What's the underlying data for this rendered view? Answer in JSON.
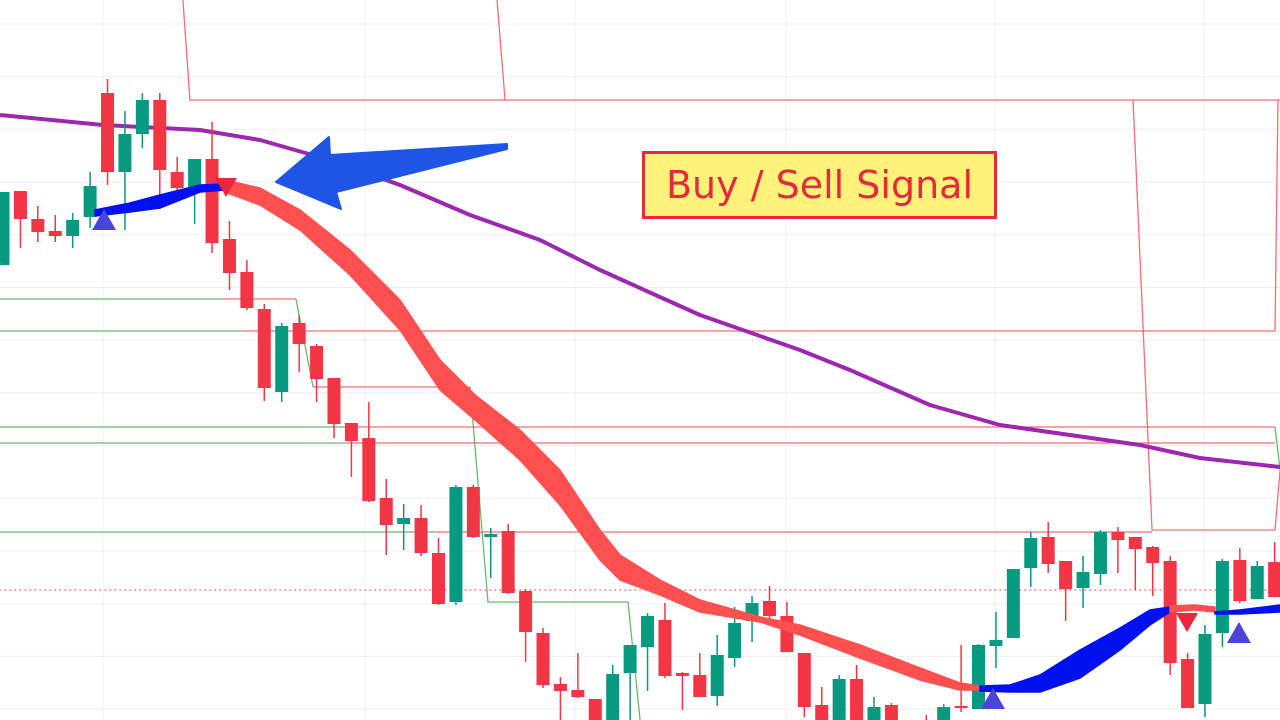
{
  "chart_data": {
    "type": "candlestick",
    "title": "",
    "xlabel": "",
    "ylabel": "",
    "grid": true,
    "colors": {
      "up": "#089981",
      "down": "#f23645",
      "moving_average": "#9c27b0",
      "signal_bull": "#0010ee",
      "signal_bear": "#ff4f4f",
      "buy_marker": "#4c44d8",
      "sell_marker": "#e8283c",
      "arrow": "#1f55e6",
      "support": "#4caf50",
      "resistance": "#f7525f",
      "label_bg": "#fff27a",
      "label_text": "#e8283c"
    },
    "candles": [
      [
        45.5,
        52.8,
        45.5,
        52.8
      ],
      [
        52.9,
        52.9,
        47.2,
        50.1
      ],
      [
        50.1,
        51.4,
        47.8,
        48.8
      ],
      [
        48.9,
        50.5,
        47.8,
        48.4
      ],
      [
        48.4,
        50.7,
        47.2,
        50.0
      ],
      [
        50.3,
        54.8,
        49.2,
        53.4
      ],
      [
        62.7,
        64.1,
        53.5,
        54.8
      ],
      [
        54.8,
        60.9,
        49.0,
        58.6
      ],
      [
        58.6,
        62.7,
        57.2,
        62.0
      ],
      [
        62.0,
        62.7,
        51.1,
        55.0
      ],
      [
        54.8,
        56.3,
        52.3,
        53.2
      ],
      [
        53.3,
        56.1,
        49.6,
        56.1
      ],
      [
        56.1,
        59.8,
        46.7,
        47.7
      ],
      [
        48.1,
        49.9,
        43.0,
        44.7
      ],
      [
        44.8,
        46.0,
        41.0,
        41.2
      ],
      [
        41.1,
        41.6,
        31.9,
        33.2
      ],
      [
        32.8,
        39.7,
        31.8,
        39.4
      ],
      [
        39.7,
        40.5,
        34.8,
        37.6
      ],
      [
        37.4,
        37.6,
        31.8,
        34.1
      ],
      [
        34.2,
        34.2,
        28.2,
        29.6
      ],
      [
        29.7,
        29.7,
        24.3,
        27.9
      ],
      [
        28.2,
        31.8,
        21.8,
        21.9
      ],
      [
        22.2,
        24.1,
        16.5,
        19.5
      ],
      [
        19.6,
        21.6,
        17.0,
        20.2
      ],
      [
        20.2,
        21.5,
        16.4,
        16.7
      ],
      [
        16.7,
        18.2,
        11.5,
        11.6
      ],
      [
        11.8,
        23.5,
        11.5,
        23.3
      ],
      [
        23.3,
        23.5,
        18.2,
        18.3
      ],
      [
        18.3,
        19.2,
        14.2,
        18.6
      ],
      [
        18.9,
        19.6,
        12.6,
        12.7
      ],
      [
        12.9,
        13.1,
        5.8,
        8.8
      ],
      [
        8.7,
        9.2,
        3.2,
        3.5
      ],
      [
        3.6,
        4.3,
        0.0,
        2.9
      ],
      [
        3.0,
        6.7,
        2.2,
        2.3
      ],
      [
        2.1,
        2.1,
        -1.0,
        -0.5
      ],
      [
        -0.5,
        5.5,
        -1.0,
        4.6
      ],
      [
        4.7,
        7.5,
        0.0,
        7.5
      ],
      [
        7.3,
        10.7,
        2.9,
        10.4
      ],
      [
        10.0,
        11.7,
        4.2,
        4.4
      ],
      [
        4.7,
        4.8,
        1.0,
        4.4
      ],
      [
        4.5,
        6.7,
        2.3,
        2.3
      ],
      [
        2.4,
        8.5,
        1.4,
        6.5
      ],
      [
        6.2,
        11.3,
        5.3,
        9.7
      ],
      [
        9.9,
        12.4,
        7.8,
        11.7
      ],
      [
        11.9,
        13.4,
        10.1,
        10.4
      ],
      [
        10.4,
        11.8,
        6.8,
        6.8
      ],
      [
        6.7,
        6.7,
        0.3,
        1.3
      ],
      [
        1.5,
        3.3,
        -1.0,
        -0.5
      ],
      [
        -0.5,
        4.5,
        -1.0,
        4.1
      ],
      [
        4.1,
        5.5,
        -1.0,
        -0.5
      ],
      [
        -0.5,
        2.3,
        -1.0,
        1.3
      ],
      [
        1.5,
        1.7,
        -1.0,
        -0.5
      ],
      [
        -1.5,
        -0.5,
        -3.0,
        -2.5
      ],
      [
        -0.5,
        0.5,
        -3.0,
        -2.0
      ],
      [
        -0.5,
        1.6,
        -1.0,
        1.3
      ],
      [
        1.4,
        7.5,
        0.8,
        1.2
      ],
      [
        1.1,
        7.6,
        1.1,
        7.5
      ],
      [
        7.4,
        10.8,
        5.2,
        8.0
      ],
      [
        8.2,
        15.1,
        8.2,
        15.1
      ],
      [
        15.2,
        18.8,
        13.3,
        18.2
      ],
      [
        18.3,
        19.8,
        14.7,
        15.6
      ],
      [
        15.9,
        15.9,
        9.9,
        13.1
      ],
      [
        13.2,
        16.4,
        11.2,
        14.8
      ],
      [
        14.6,
        19.0,
        13.5,
        18.8
      ],
      [
        18.8,
        19.3,
        14.7,
        18.0
      ],
      [
        18.3,
        18.3,
        13.0,
        17.1
      ],
      [
        17.3,
        17.4,
        12.4,
        15.7
      ],
      [
        15.9,
        16.4,
        4.5,
        5.7
      ],
      [
        6.1,
        6.7,
        1.2,
        1.2
      ],
      [
        1.6,
        9.5,
        0.3,
        8.6
      ],
      [
        8.7,
        16.1,
        7.3,
        15.9
      ],
      [
        16.0,
        17.2,
        11.7,
        11.9
      ],
      [
        12.1,
        15.9,
        12.1,
        15.4
      ],
      [
        15.8,
        17.8,
        12.3,
        12.3
      ]
    ],
    "candle_fields": [
      "open",
      "high",
      "low",
      "close"
    ],
    "moving_average": [
      [
        -0.17,
        60.5
      ],
      [
        5.74,
        59.5
      ],
      [
        11.31,
        59.0
      ],
      [
        14.75,
        58.0
      ],
      [
        18.77,
        56.0
      ],
      [
        22.79,
        53.5
      ],
      [
        26.81,
        50.5
      ],
      [
        30.83,
        48.0
      ],
      [
        34.27,
        45.0
      ],
      [
        40.01,
        40.5
      ],
      [
        45.75,
        37.0
      ],
      [
        48.62,
        35.0
      ],
      [
        53.21,
        31.5
      ],
      [
        57.23,
        29.5
      ],
      [
        65.27,
        27.5
      ],
      [
        68.71,
        26.2
      ],
      [
        73.31,
        25.3
      ]
    ],
    "signal_bands": [
      {
        "trend": "bull",
        "points": [
          [
            5.28,
            51.0,
            50.4
          ],
          [
            7.29,
            51.7,
            50.8
          ],
          [
            9.01,
            52.5,
            51.2
          ],
          [
            11.31,
            53.5,
            52.8
          ],
          [
            12.74,
            53.6,
            53.0
          ]
        ]
      },
      {
        "trend": "bear",
        "points": [
          [
            12.74,
            54.0,
            52.8
          ],
          [
            14.75,
            53.2,
            51.5
          ],
          [
            17.05,
            51.0,
            49.0
          ],
          [
            19.92,
            47.0,
            44.5
          ],
          [
            22.79,
            42.0,
            39.0
          ],
          [
            25.09,
            36.0,
            33.0
          ],
          [
            27.1,
            32.5,
            30.0
          ],
          [
            29.68,
            29.0,
            26.0
          ],
          [
            31.97,
            25.0,
            21.5
          ],
          [
            34.27,
            19.0,
            16.0
          ],
          [
            35.42,
            16.5,
            14.0
          ],
          [
            37.72,
            14.0,
            12.5
          ],
          [
            40.01,
            12.0,
            10.8
          ],
          [
            43.46,
            10.3,
            9.8
          ],
          [
            45.75,
            9.5,
            8.5
          ],
          [
            49.2,
            7.5,
            6.2
          ],
          [
            52.64,
            5.2,
            4.0
          ],
          [
            54.94,
            3.7,
            3.0
          ],
          [
            56.08,
            3.4,
            3.0
          ]
        ]
      },
      {
        "trend": "bull",
        "points": [
          [
            56.08,
            3.4,
            2.9
          ],
          [
            57.81,
            3.5,
            2.8
          ],
          [
            59.53,
            4.5,
            2.8
          ],
          [
            61.83,
            7.0,
            4.2
          ],
          [
            64.12,
            9.2,
            7.0
          ],
          [
            65.84,
            11.0,
            9.5
          ],
          [
            66.99,
            11.3,
            10.8
          ]
        ]
      },
      {
        "trend": "bear",
        "points": [
          [
            66.99,
            11.4,
            10.8
          ],
          [
            68.42,
            11.5,
            11.0
          ],
          [
            69.57,
            11.3,
            10.8
          ]
        ]
      },
      {
        "trend": "bull",
        "points": [
          [
            69.57,
            10.8,
            10.6
          ],
          [
            71.0,
            11.0,
            10.6
          ],
          [
            73.31,
            11.5,
            10.8
          ]
        ]
      }
    ],
    "signals": [
      {
        "type": "buy",
        "x": 5.8,
        "price": 51.1
      },
      {
        "type": "sell",
        "x": 12.8,
        "price": 52.3
      },
      {
        "type": "buy",
        "x": 56.83,
        "price": 3.2
      },
      {
        "type": "sell",
        "x": 67.97,
        "price": 8.8
      },
      {
        "type": "buy",
        "x": 70.95,
        "price": 9.8
      }
    ],
    "levels": [
      {
        "kind": "resistance",
        "style": "solid",
        "points": [
          [
            10.33,
            72
          ],
          [
            10.73,
            62
          ],
          [
            73.31,
            62
          ]
        ]
      },
      {
        "kind": "resistance",
        "style": "solid",
        "points": [
          [
            28.36,
            72
          ],
          [
            28.82,
            62
          ]
        ]
      },
      {
        "kind": "resistance",
        "style": "solid",
        "points": [
          [
            64.87,
            62
          ],
          [
            65.96,
            19.0
          ],
          [
            73.02,
            19.0
          ],
          [
            73.31,
            25.0
          ]
        ]
      },
      {
        "kind": "resistance",
        "style": "solid",
        "points": [
          [
            73.19,
            62
          ],
          [
            73.02,
            38.9
          ]
        ]
      },
      {
        "kind": "support",
        "style": "solid",
        "points": [
          [
            -0.5,
            42.1
          ],
          [
            12.69,
            42.1
          ]
        ]
      },
      {
        "kind": "resistance",
        "style": "solid",
        "points": [
          [
            12.69,
            42.1
          ],
          [
            16.82,
            42.1
          ]
        ]
      },
      {
        "kind": "support",
        "style": "solid",
        "points": [
          [
            16.82,
            42.1
          ],
          [
            17.8,
            33.3
          ]
        ]
      },
      {
        "kind": "resistance",
        "style": "solid",
        "points": [
          [
            17.8,
            33.3
          ],
          [
            26.81,
            33.3
          ]
        ]
      },
      {
        "kind": "support",
        "style": "solid",
        "points": [
          [
            26.81,
            33.3
          ],
          [
            27.84,
            11.8
          ],
          [
            35.88,
            11.8
          ],
          [
            36.57,
            0
          ]
        ]
      },
      {
        "kind": "support",
        "style": "solid",
        "points": [
          [
            -0.5,
            38.9
          ],
          [
            13.78,
            38.9
          ]
        ]
      },
      {
        "kind": "resistance",
        "style": "solid",
        "points": [
          [
            13.78,
            38.9
          ],
          [
            73.02,
            38.9
          ]
        ]
      },
      {
        "kind": "support",
        "style": "solid",
        "points": [
          [
            -0.5,
            29.3
          ],
          [
            19.63,
            29.3
          ]
        ]
      },
      {
        "kind": "resistance",
        "style": "solid",
        "points": [
          [
            19.63,
            29.3
          ],
          [
            73.02,
            29.3
          ]
        ]
      },
      {
        "kind": "support",
        "style": "solid",
        "points": [
          [
            73.02,
            29.3
          ],
          [
            73.31,
            25.0
          ]
        ]
      },
      {
        "kind": "support",
        "style": "solid",
        "points": [
          [
            -0.5,
            27.7
          ],
          [
            19.63,
            27.7
          ]
        ]
      },
      {
        "kind": "resistance",
        "style": "solid",
        "points": [
          [
            19.63,
            27.7
          ],
          [
            73.02,
            27.7
          ]
        ]
      },
      {
        "kind": "support",
        "style": "solid",
        "points": [
          [
            -0.5,
            18.8
          ],
          [
            24.8,
            18.8
          ]
        ]
      },
      {
        "kind": "resistance",
        "style": "solid",
        "points": [
          [
            24.8,
            18.8
          ],
          [
            65.96,
            18.8
          ]
        ]
      },
      {
        "kind": "resistance",
        "style": "dotted",
        "points": [
          [
            -0.5,
            13.0
          ],
          [
            73.5,
            13.0
          ]
        ]
      }
    ],
    "arrow": [
      [
        15.67,
        53.8
      ],
      [
        18.71,
        58.3
      ],
      [
        18.77,
        56.5
      ],
      [
        28.93,
        57.6
      ],
      [
        28.93,
        57.1
      ],
      [
        19.12,
        52.8
      ],
      [
        19.4,
        51.1
      ]
    ],
    "annotation": {
      "text": "Buy / Sell Signal"
    }
  }
}
